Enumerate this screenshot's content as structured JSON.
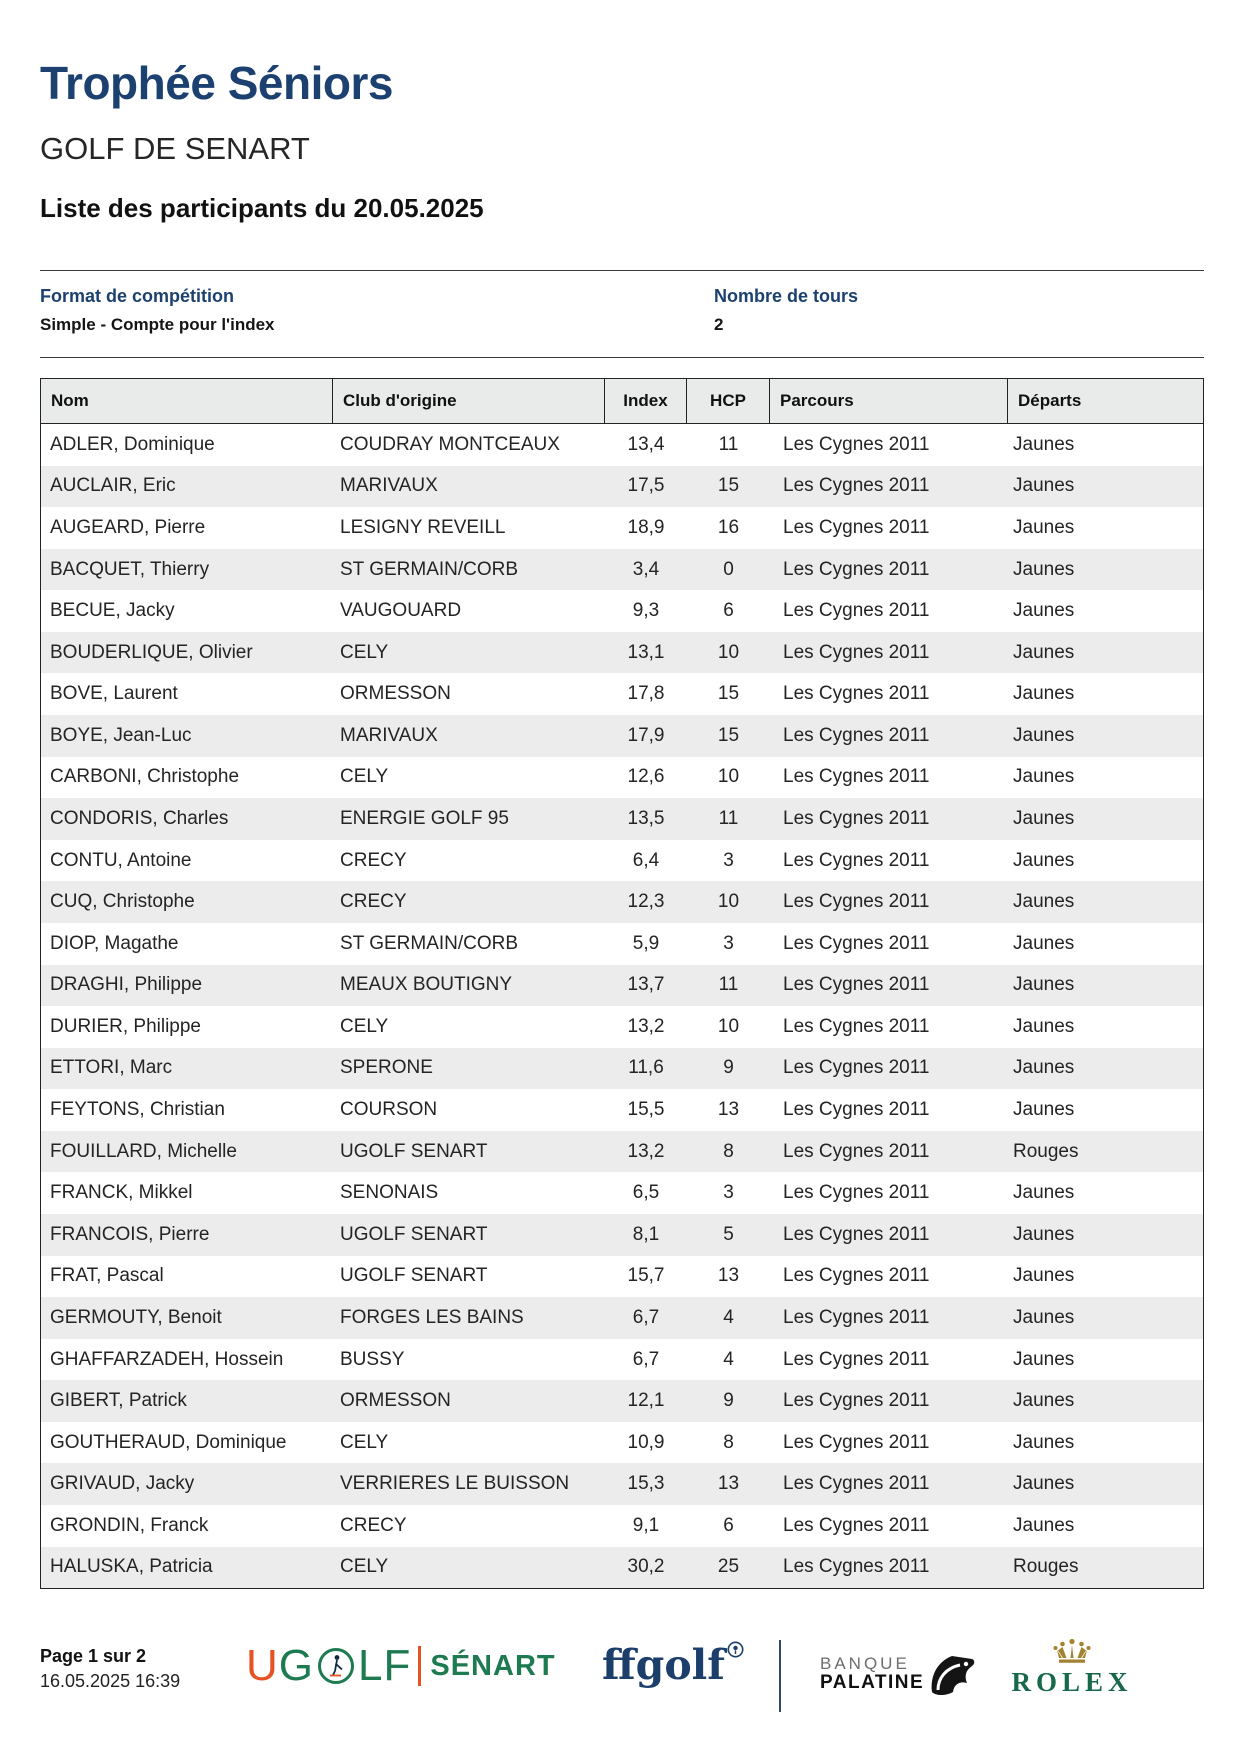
{
  "page": {
    "title": "Trophée Séniors",
    "club": "GOLF DE SENART",
    "subtitle": "Liste des participants du 20.05.2025"
  },
  "meta": {
    "format_label": "Format de compétition",
    "format_value": "Simple - Compte pour l'index",
    "rounds_label": "Nombre de tours",
    "rounds_value": "2"
  },
  "table": {
    "headers": [
      "Nom",
      "Club d'origine",
      "Index",
      "HCP",
      "Parcours",
      "Départs"
    ],
    "rows": [
      {
        "nom": "ADLER, Dominique",
        "club": "COUDRAY MONTCEAUX",
        "index": "13,4",
        "hcp": "11",
        "parcours": "Les Cygnes 2011",
        "departs": "Jaunes"
      },
      {
        "nom": "AUCLAIR, Eric",
        "club": "MARIVAUX",
        "index": "17,5",
        "hcp": "15",
        "parcours": "Les Cygnes 2011",
        "departs": "Jaunes"
      },
      {
        "nom": "AUGEARD, Pierre",
        "club": "LESIGNY REVEILL",
        "index": "18,9",
        "hcp": "16",
        "parcours": "Les Cygnes 2011",
        "departs": "Jaunes"
      },
      {
        "nom": "BACQUET, Thierry",
        "club": "ST GERMAIN/CORB",
        "index": "3,4",
        "hcp": "0",
        "parcours": "Les Cygnes 2011",
        "departs": "Jaunes"
      },
      {
        "nom": "BECUE, Jacky",
        "club": "VAUGOUARD",
        "index": "9,3",
        "hcp": "6",
        "parcours": "Les Cygnes 2011",
        "departs": "Jaunes"
      },
      {
        "nom": "BOUDERLIQUE, Olivier",
        "club": "CELY",
        "index": "13,1",
        "hcp": "10",
        "parcours": "Les Cygnes 2011",
        "departs": "Jaunes"
      },
      {
        "nom": "BOVE, Laurent",
        "club": "ORMESSON",
        "index": "17,8",
        "hcp": "15",
        "parcours": "Les Cygnes 2011",
        "departs": "Jaunes"
      },
      {
        "nom": "BOYE, Jean-Luc",
        "club": "MARIVAUX",
        "index": "17,9",
        "hcp": "15",
        "parcours": "Les Cygnes 2011",
        "departs": "Jaunes"
      },
      {
        "nom": "CARBONI, Christophe",
        "club": "CELY",
        "index": "12,6",
        "hcp": "10",
        "parcours": "Les Cygnes 2011",
        "departs": "Jaunes"
      },
      {
        "nom": "CONDORIS, Charles",
        "club": "ENERGIE GOLF 95",
        "index": "13,5",
        "hcp": "11",
        "parcours": "Les Cygnes 2011",
        "departs": "Jaunes"
      },
      {
        "nom": "CONTU, Antoine",
        "club": "CRECY",
        "index": "6,4",
        "hcp": "3",
        "parcours": "Les Cygnes 2011",
        "departs": "Jaunes"
      },
      {
        "nom": "CUQ, Christophe",
        "club": "CRECY",
        "index": "12,3",
        "hcp": "10",
        "parcours": "Les Cygnes 2011",
        "departs": "Jaunes"
      },
      {
        "nom": "DIOP, Magathe",
        "club": "ST GERMAIN/CORB",
        "index": "5,9",
        "hcp": "3",
        "parcours": "Les Cygnes 2011",
        "departs": "Jaunes"
      },
      {
        "nom": "DRAGHI, Philippe",
        "club": "MEAUX BOUTIGNY",
        "index": "13,7",
        "hcp": "11",
        "parcours": "Les Cygnes 2011",
        "departs": "Jaunes"
      },
      {
        "nom": "DURIER, Philippe",
        "club": "CELY",
        "index": "13,2",
        "hcp": "10",
        "parcours": "Les Cygnes 2011",
        "departs": "Jaunes"
      },
      {
        "nom": "ETTORI, Marc",
        "club": "SPERONE",
        "index": "11,6",
        "hcp": "9",
        "parcours": "Les Cygnes 2011",
        "departs": "Jaunes"
      },
      {
        "nom": "FEYTONS, Christian",
        "club": "COURSON",
        "index": "15,5",
        "hcp": "13",
        "parcours": "Les Cygnes 2011",
        "departs": "Jaunes"
      },
      {
        "nom": "FOUILLARD, Michelle",
        "club": "UGOLF SENART",
        "index": "13,2",
        "hcp": "8",
        "parcours": "Les Cygnes 2011",
        "departs": "Rouges"
      },
      {
        "nom": "FRANCK, Mikkel",
        "club": "SENONAIS",
        "index": "6,5",
        "hcp": "3",
        "parcours": "Les Cygnes 2011",
        "departs": "Jaunes"
      },
      {
        "nom": "FRANCOIS, Pierre",
        "club": "UGOLF SENART",
        "index": "8,1",
        "hcp": "5",
        "parcours": "Les Cygnes 2011",
        "departs": "Jaunes"
      },
      {
        "nom": "FRAT, Pascal",
        "club": "UGOLF SENART",
        "index": "15,7",
        "hcp": "13",
        "parcours": "Les Cygnes 2011",
        "departs": "Jaunes"
      },
      {
        "nom": "GERMOUTY, Benoit",
        "club": "FORGES LES BAINS",
        "index": "6,7",
        "hcp": "4",
        "parcours": "Les Cygnes 2011",
        "departs": "Jaunes"
      },
      {
        "nom": "GHAFFARZADEH, Hossein",
        "club": "BUSSY",
        "index": "6,7",
        "hcp": "4",
        "parcours": "Les Cygnes 2011",
        "departs": "Jaunes"
      },
      {
        "nom": "GIBERT, Patrick",
        "club": "ORMESSON",
        "index": "12,1",
        "hcp": "9",
        "parcours": "Les Cygnes 2011",
        "departs": "Jaunes"
      },
      {
        "nom": "GOUTHERAUD, Dominique",
        "club": "CELY",
        "index": "10,9",
        "hcp": "8",
        "parcours": "Les Cygnes 2011",
        "departs": "Jaunes"
      },
      {
        "nom": "GRIVAUD, Jacky",
        "club": "VERRIERES LE BUISSON",
        "index": "15,3",
        "hcp": "13",
        "parcours": "Les Cygnes 2011",
        "departs": "Jaunes"
      },
      {
        "nom": "GRONDIN, Franck",
        "club": "CRECY",
        "index": "9,1",
        "hcp": "6",
        "parcours": "Les Cygnes 2011",
        "departs": "Jaunes"
      },
      {
        "nom": "HALUSKA, Patricia",
        "club": "CELY",
        "index": "30,2",
        "hcp": "25",
        "parcours": "Les Cygnes 2011",
        "departs": "Rouges"
      }
    ]
  },
  "footer": {
    "page_label": "Page 1 sur 2",
    "datetime": "16.05.2025 16:39",
    "ugolf": {
      "u": "U",
      "g": "G",
      "lf": "LF",
      "site": "SÉNART"
    },
    "ffgolf": "ffgolf",
    "banque_line1": "BANQUE",
    "banque_line2": "PALATINE",
    "rolex": "ROLEX"
  },
  "colors": {
    "navy": "#1c4170",
    "table_header_bg": "#e9eaea",
    "row_alt_bg": "#ebeceb",
    "ugolf_green": "#1e7a50",
    "ugolf_orange": "#e55325",
    "ffgolf_navy": "#1c3e6b",
    "rolex_green": "#17694a",
    "rolex_gold": "#a5812f"
  }
}
